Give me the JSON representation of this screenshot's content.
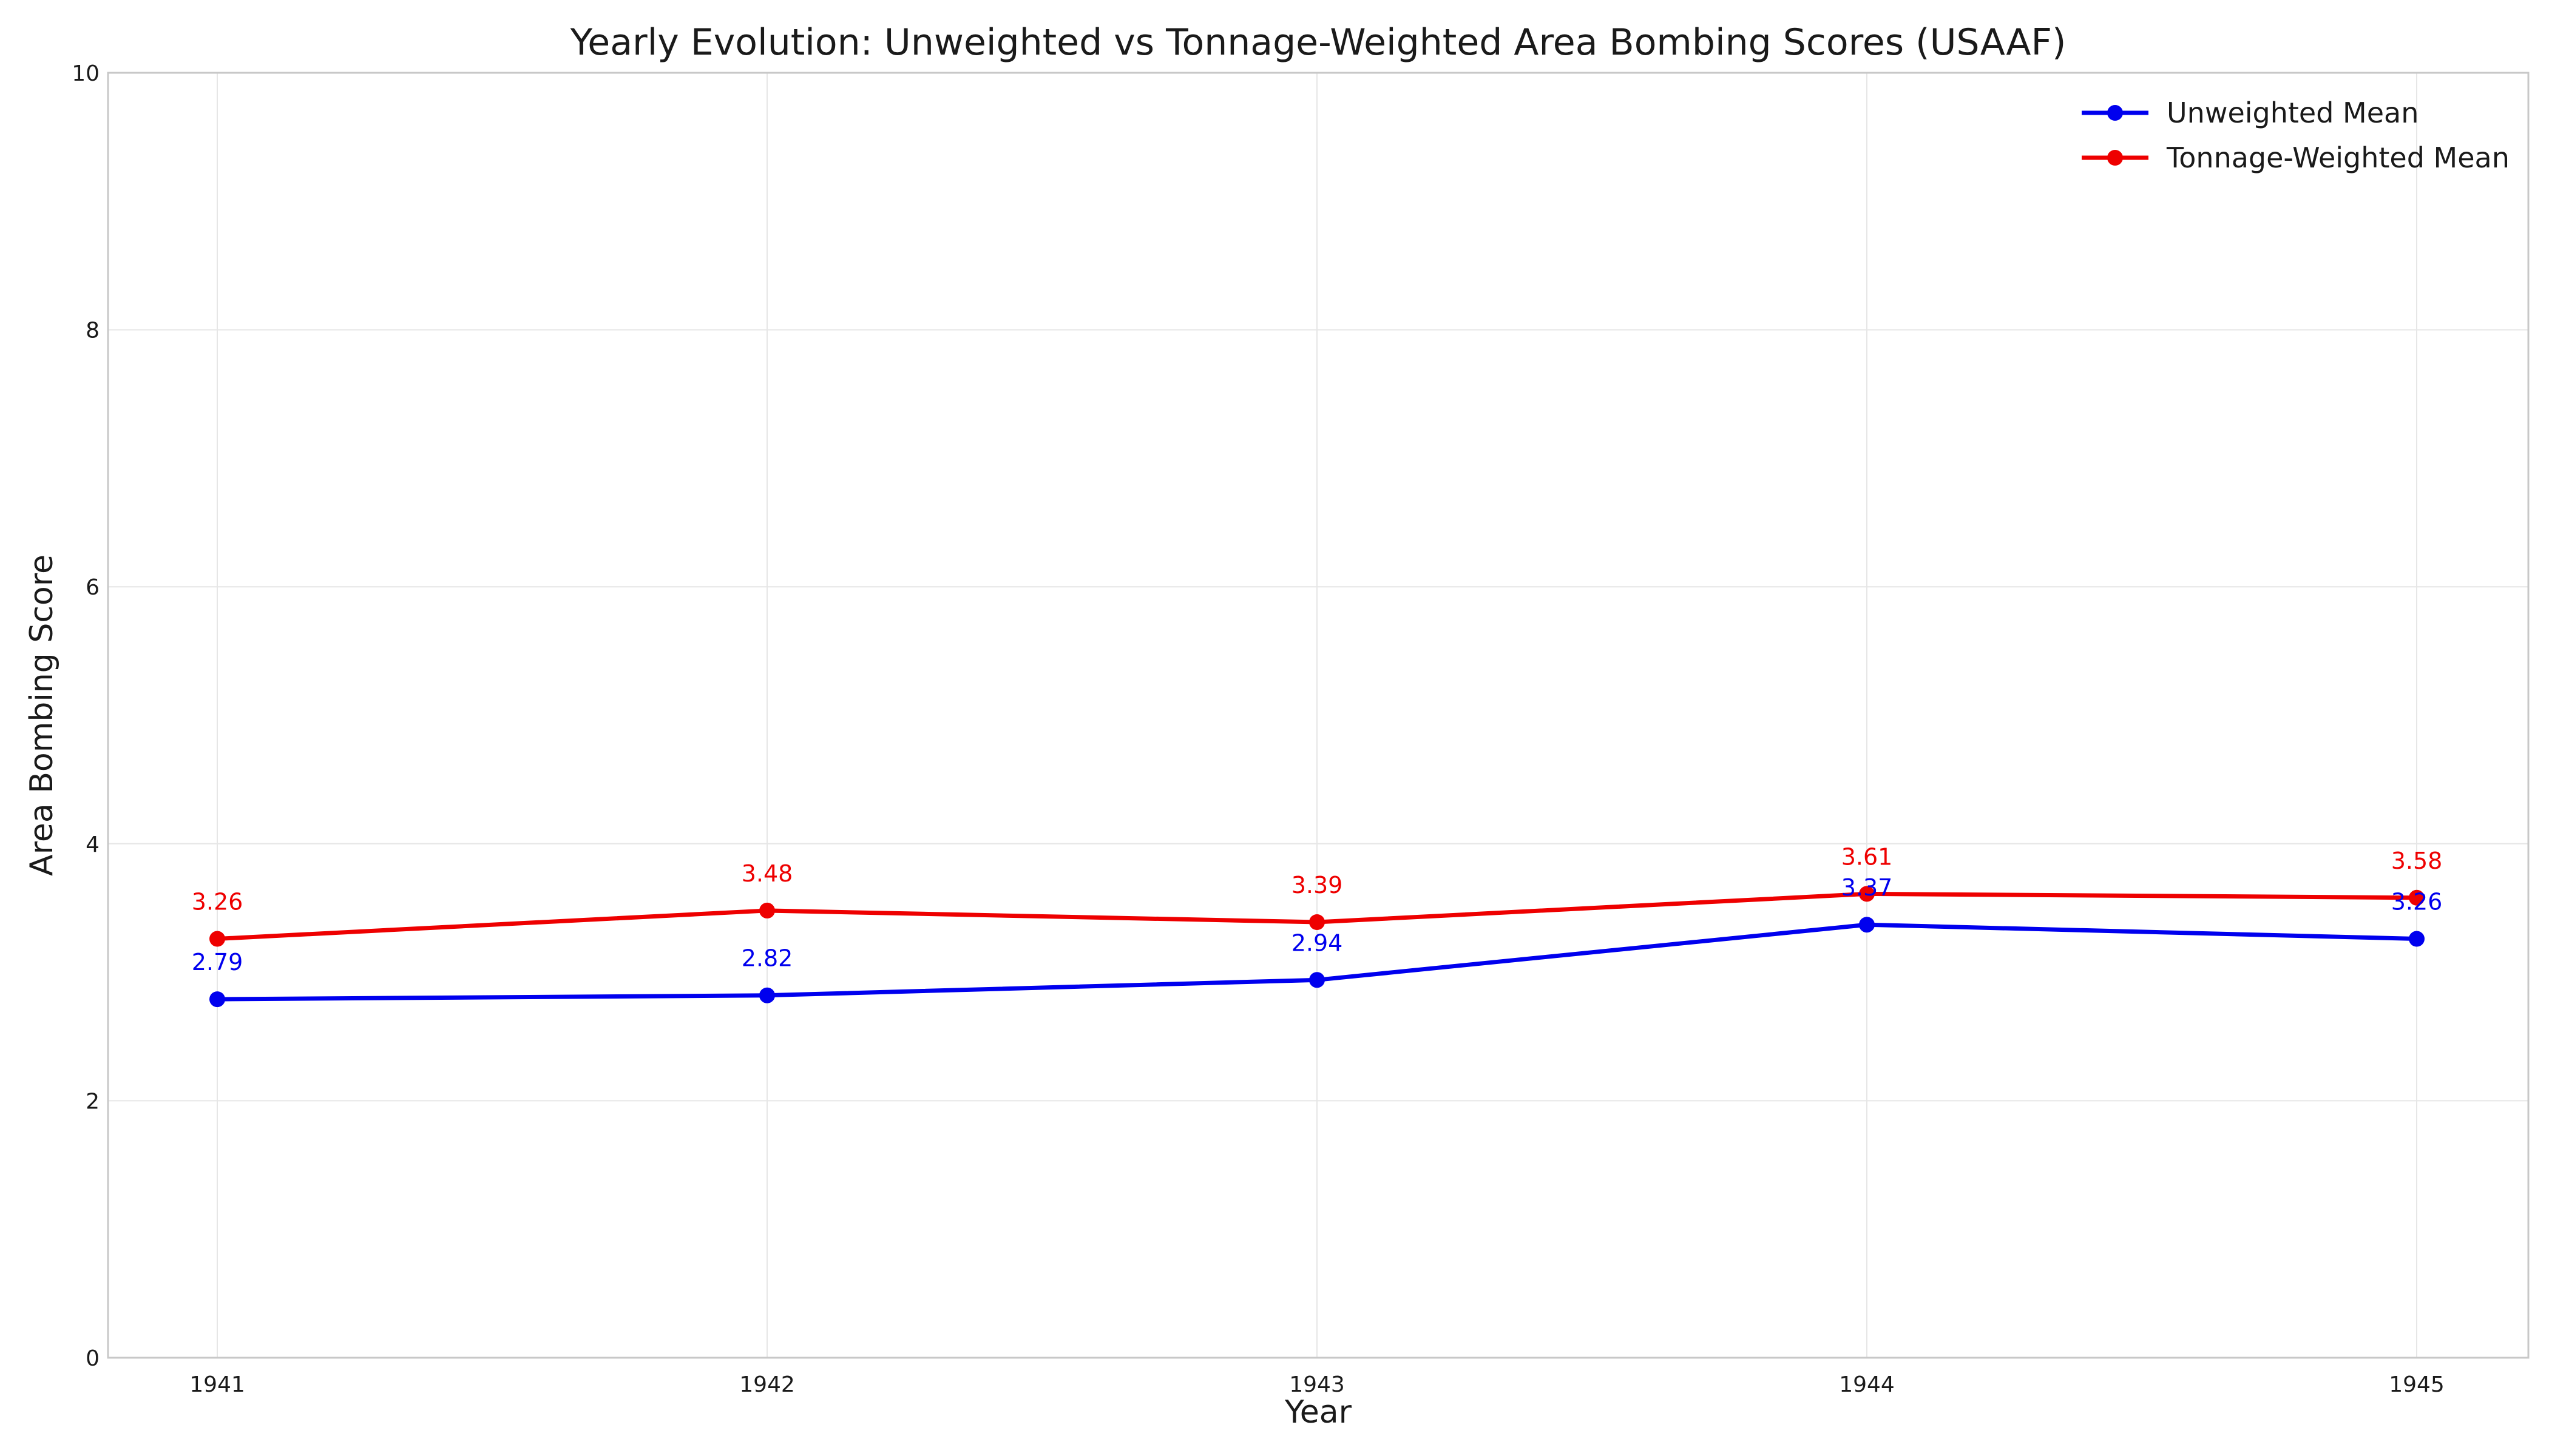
{
  "chart_data": {
    "type": "line",
    "title": "Yearly Evolution: Unweighted vs Tonnage-Weighted Area Bombing Scores (USAAF)",
    "xlabel": "Year",
    "ylabel": "Area Bombing Score",
    "categories": [
      "1941",
      "1942",
      "1943",
      "1944",
      "1945"
    ],
    "ylim": [
      0,
      10
    ],
    "yticks": [
      "0",
      "2",
      "4",
      "6",
      "8",
      "10"
    ],
    "grid": true,
    "legend_position": "top-right",
    "series": [
      {
        "name": "Unweighted Mean",
        "color": "#0000ee",
        "values": [
          2.79,
          2.82,
          2.94,
          3.37,
          3.26
        ],
        "labels": [
          "2.79",
          "2.82",
          "2.94",
          "3.37",
          "3.26"
        ]
      },
      {
        "name": "Tonnage-Weighted Mean",
        "color": "#ee0000",
        "values": [
          3.26,
          3.48,
          3.39,
          3.61,
          3.58
        ],
        "labels": [
          "3.26",
          "3.48",
          "3.39",
          "3.61",
          "3.58"
        ]
      }
    ]
  }
}
